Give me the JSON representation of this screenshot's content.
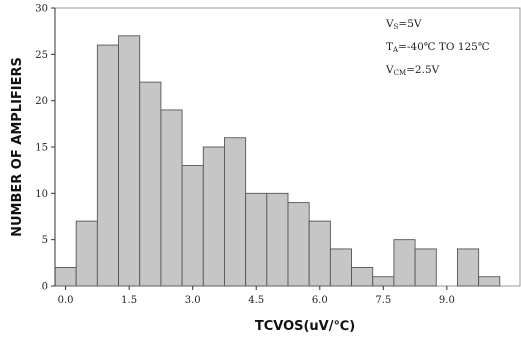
{
  "chart_data": {
    "type": "bar",
    "xlabel": "TCVOS(uV/℃)",
    "ylabel": "NUMBER OF AMPLIFIERS",
    "ylim": [
      0,
      30
    ],
    "yticks": [
      "0",
      "5",
      "10",
      "15",
      "20",
      "25",
      "30"
    ],
    "xticks": [
      "0.0",
      "1.5",
      "3.0",
      "4.5",
      "6.0",
      "7.5",
      "9.0"
    ],
    "xlim": [
      -0.25,
      10.75
    ],
    "bin_width": 0.5,
    "bin_starts": [
      -0.25,
      0.25,
      0.75,
      1.25,
      1.75,
      2.25,
      2.75,
      3.25,
      3.75,
      4.25,
      4.75,
      5.25,
      5.75,
      6.25,
      6.75,
      7.25,
      7.75,
      8.25,
      8.75,
      9.25,
      9.75,
      10.25
    ],
    "values": [
      2,
      7,
      26,
      27,
      22,
      19,
      13,
      15,
      16,
      10,
      10,
      9,
      7,
      4,
      2,
      1,
      5,
      4,
      0,
      4,
      1,
      0
    ],
    "grid": false,
    "legend": "none",
    "annotations": [
      {
        "main": "V",
        "sub": "S",
        "rest": "=5V"
      },
      {
        "main": "T",
        "sub": "A",
        "rest": "=-40℃  TO  125℃"
      },
      {
        "main": "V",
        "sub": "CM",
        "rest": "=2.5V"
      }
    ],
    "colors": {
      "bar_fill": "#c6c6c6",
      "bar_edge": "#555555",
      "frame": "#9a9a9a"
    }
  }
}
